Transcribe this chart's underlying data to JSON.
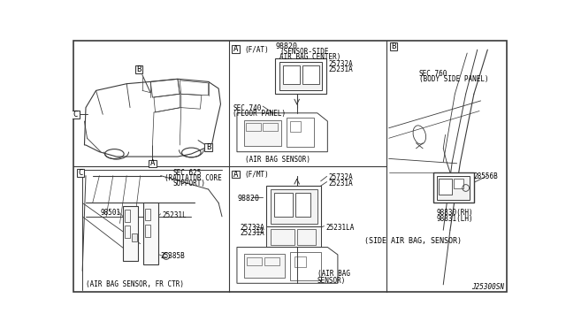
{
  "bg_color": "#ffffff",
  "fig_width": 6.4,
  "fig_height": 3.72,
  "dpi": 100,
  "lc": "#3a3a3a",
  "sections": {
    "part_98820": "98820",
    "sensor_side_line1": "98820",
    "sensor_side_line2": "(SENSOR-SIDE",
    "sensor_side_line3": "AIR BAG CENTER)",
    "part_25732A": "25732A",
    "part_25231A": "25231A",
    "sec_740_line1": "SEC.740",
    "sec_740_line2": "(FLOOR PANEL)",
    "airbag_sensor_top": "(AIR BAG SENSOR)",
    "section_B_label": "B",
    "sec_760_line1": "SEC.760",
    "sec_760_line2": "(BODY SIDE PANEL)",
    "part_28556B": "28556B",
    "part_98830": "98830(RH)",
    "part_98831": "98831(LH)",
    "side_airbag": "(SIDE AIR BAG, SENSOR)",
    "diagram_code": "J25300SN",
    "section_C_label": "C",
    "sec_625_line1": "SEC.625",
    "sec_625_line2": "(RADIATOR CORE",
    "sec_625_line3": "SUPPORT)",
    "part_98501": "98501",
    "part_25231L": "25231L",
    "part_25385B": "25385B",
    "airbag_fr_ctr": "(AIR BAG SENSOR, FR CTR)",
    "section_A_bot_sublabel": "(F/MT)",
    "part_98820b": "98820",
    "part_25732Ab": "25732A",
    "part_25231Ab": "25231A",
    "part_25231LA": "25231LA",
    "airbag_sensor_bot_line1": "(AIR BAG",
    "airbag_sensor_bot_line2": "SENSOR)"
  }
}
